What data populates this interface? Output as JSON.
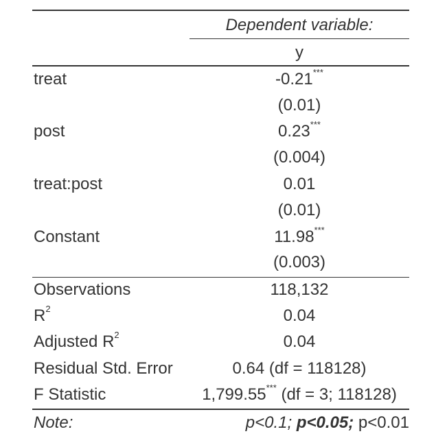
{
  "header": {
    "dependent_variable_label": "Dependent variable:",
    "dependent_variable": "y"
  },
  "coefficients": [
    {
      "label": "treat",
      "estimate": "-0.21",
      "stars": "***",
      "se": "(0.01)"
    },
    {
      "label": "post",
      "estimate": "0.23",
      "stars": "***",
      "se": "(0.004)"
    },
    {
      "label": "treat:post",
      "estimate": "0.01",
      "stars": "",
      "se": "(0.01)"
    },
    {
      "label": "Constant",
      "estimate": "11.98",
      "stars": "***",
      "se": "(0.003)"
    }
  ],
  "stats": {
    "observations": {
      "label": "Observations",
      "value": "118,132"
    },
    "r2": {
      "label": "R",
      "sup": "2",
      "value": "0.04"
    },
    "adj_r2": {
      "label": "Adjusted R",
      "sup": "2",
      "value": "0.04"
    },
    "rse": {
      "label": "Residual Std. Error",
      "value": "0.64 (df = 118128)"
    },
    "f_stat": {
      "label": "F Statistic",
      "value": "1,799.55",
      "stars": "***",
      "value_suffix": " (df = 3; 118128)"
    }
  },
  "note": {
    "label": "Note:",
    "p1": "p<0.1;",
    "p2": "p<0.05;",
    "p3": "p<0.01"
  }
}
